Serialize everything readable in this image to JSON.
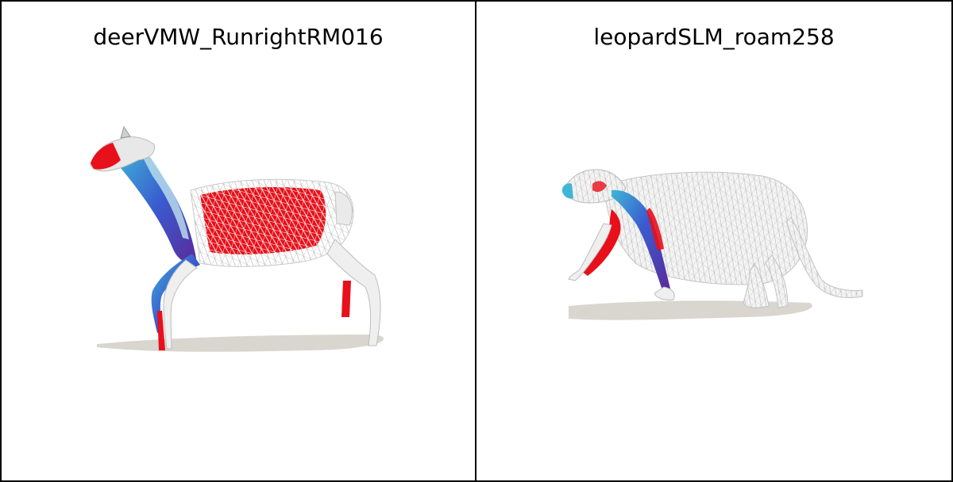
{
  "panels": [
    {
      "title": "deerVMW_RunrightRM016",
      "subject": "deer-mesh"
    },
    {
      "title": "leopardSLM_roam258",
      "subject": "leopard-mesh"
    }
  ],
  "colors": {
    "mesh_white": "#f2f2f2",
    "wire": "#bfbfbf",
    "red": "#e8101a",
    "blue": "#3a5bd0",
    "purple": "#5a2a9a",
    "cyan": "#3fb6d6",
    "shadow": "#d9d6cf"
  }
}
